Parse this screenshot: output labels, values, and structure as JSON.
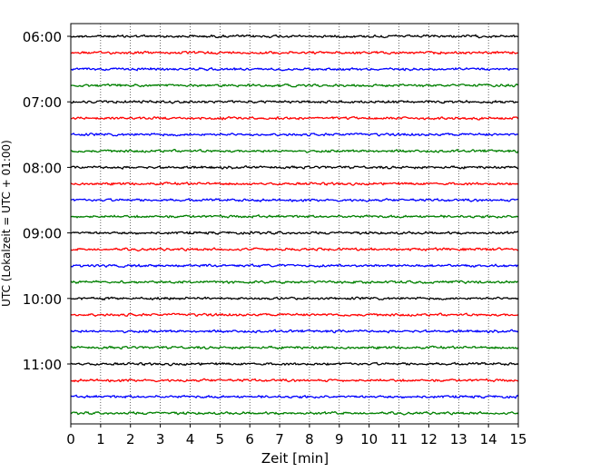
{
  "chart_data": {
    "type": "line",
    "title": "",
    "xlabel": "Zeit  [min]",
    "ylabel": "UTC (Lokalzeit = UTC + 01:00)",
    "xlim": [
      0,
      15
    ],
    "x_ticks": [
      "0",
      "1",
      "2",
      "3",
      "4",
      "5",
      "6",
      "7",
      "8",
      "9",
      "10",
      "11",
      "12",
      "13",
      "14",
      "15"
    ],
    "y_tick_labels": [
      "06:00",
      "07:00",
      "08:00",
      "09:00",
      "10:00",
      "11:00"
    ],
    "grid": "vertical dotted at each minute",
    "trace_start": "06:00",
    "trace_interval_minutes": 15,
    "trace_count": 24,
    "trace_color_cycle": [
      "#000000",
      "#ff0000",
      "#0000ff",
      "#008000"
    ]
  }
}
